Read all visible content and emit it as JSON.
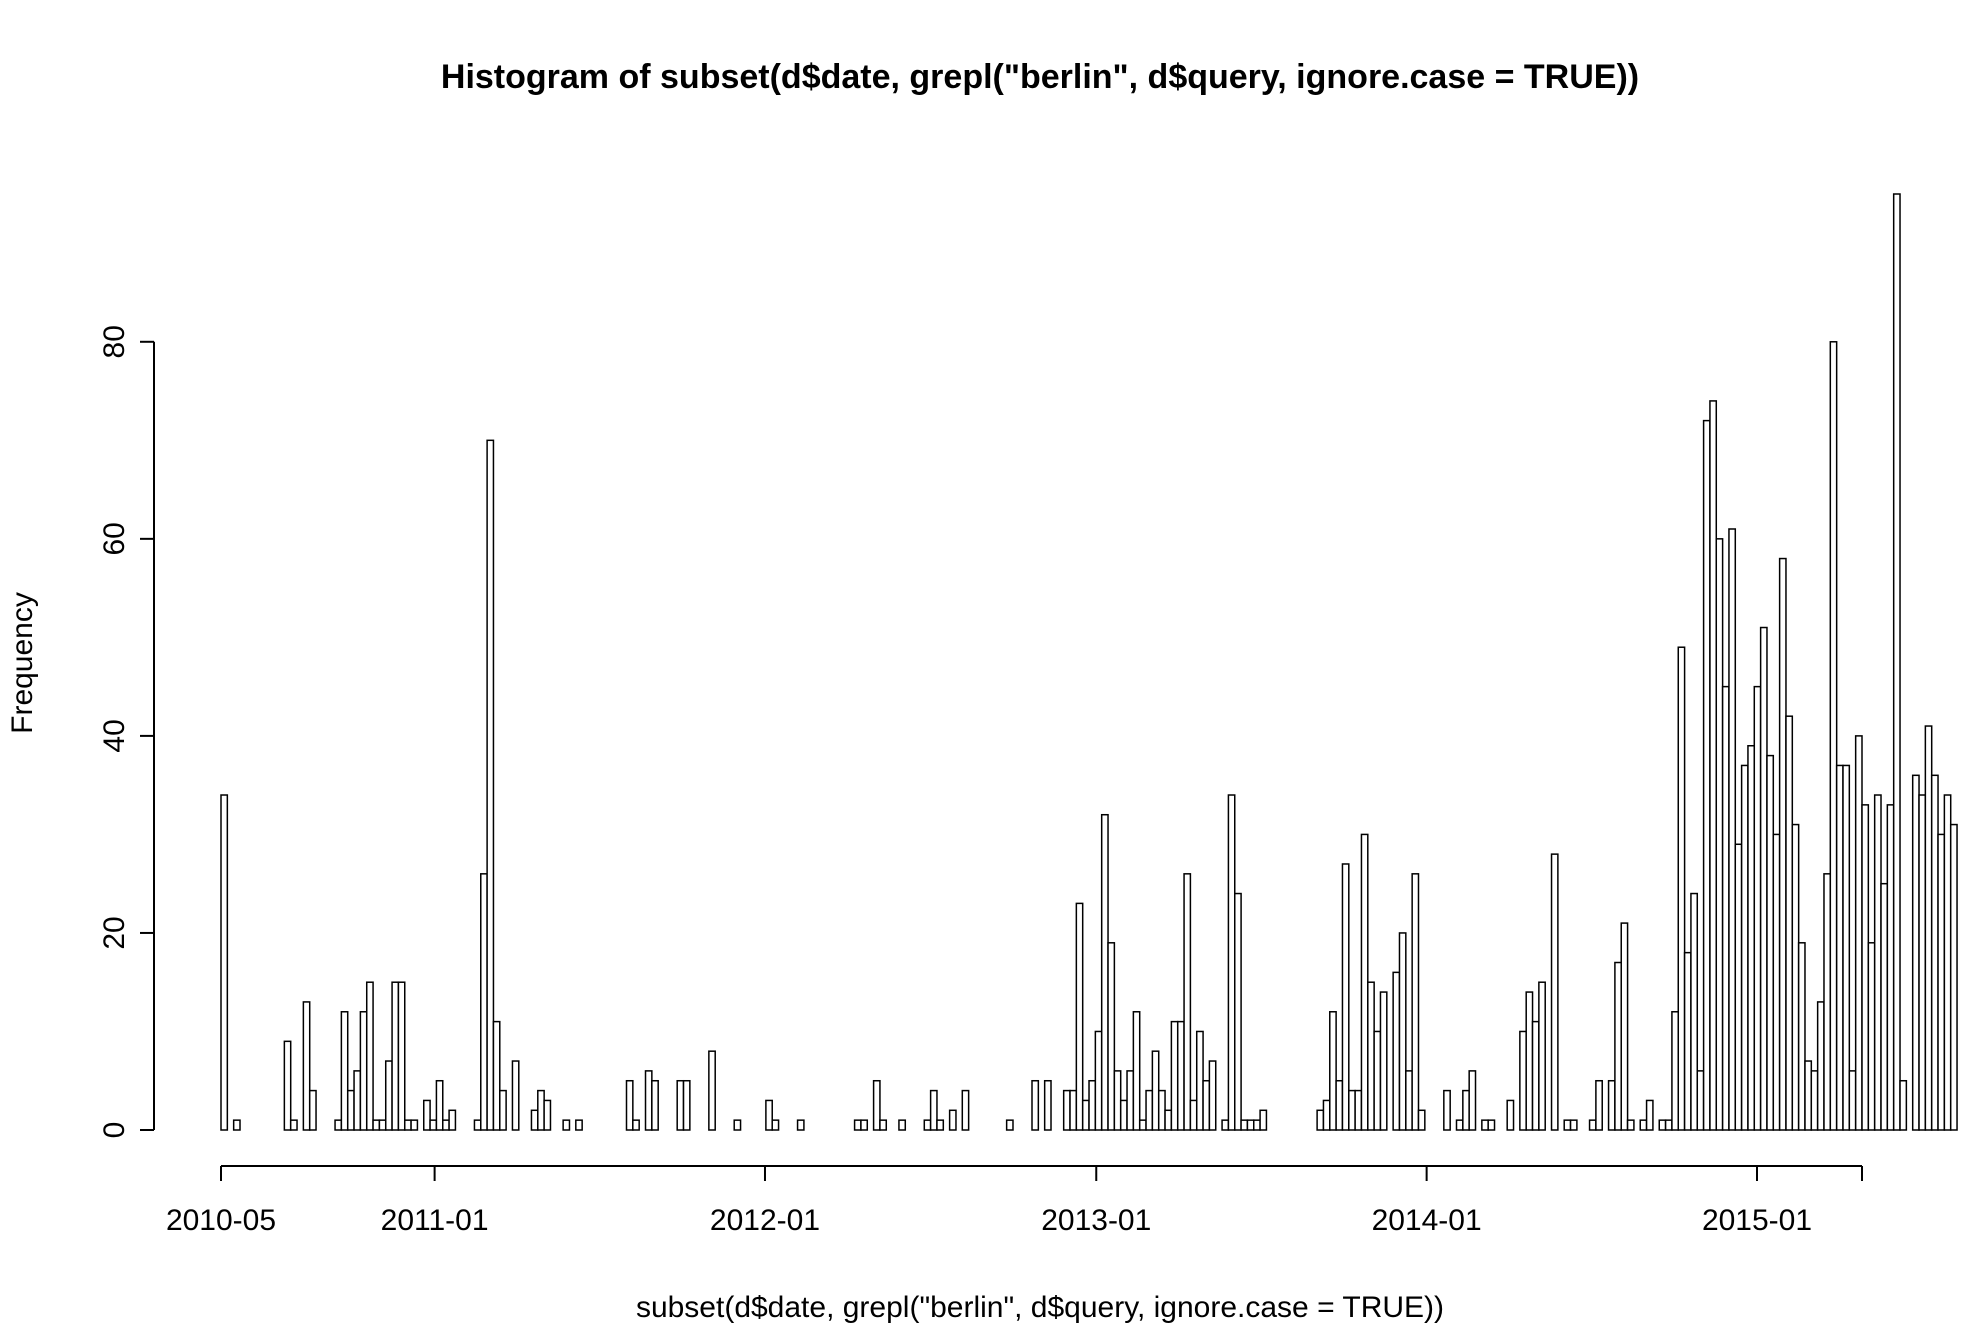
{
  "chart_data": {
    "type": "bar",
    "title": "Histogram of subset(d$date, grepl(\"berlin\", d$query, ignore.case = TRUE))",
    "xlabel": "subset(d$date, grepl(\"berlin\", d$query, ignore.case = TRUE))",
    "ylabel": "Frequency",
    "ylim": [
      0,
      95
    ],
    "y_ticks": [
      0,
      20,
      40,
      60,
      80
    ],
    "x_range": [
      "2010-05-10",
      "2015-04-27"
    ],
    "x_ticks": [
      {
        "date": "2010-05-10",
        "label": "2010-05"
      },
      {
        "date": "2011-01-01",
        "label": "2011-01"
      },
      {
        "date": "2012-01-01",
        "label": "2012-01"
      },
      {
        "date": "2013-01-01",
        "label": "2013-01"
      },
      {
        "date": "2014-01-01",
        "label": "2014-01"
      },
      {
        "date": "2015-01-01",
        "label": "2015-01"
      }
    ],
    "bin_width_days": 7,
    "grid": false,
    "values": [
      34,
      0,
      1,
      0,
      0,
      0,
      0,
      0,
      0,
      0,
      9,
      1,
      0,
      13,
      4,
      0,
      0,
      0,
      1,
      12,
      4,
      6,
      12,
      15,
      1,
      1,
      7,
      15,
      15,
      1,
      1,
      0,
      3,
      1,
      5,
      1,
      2,
      0,
      0,
      0,
      1,
      26,
      70,
      11,
      4,
      0,
      7,
      0,
      0,
      2,
      4,
      3,
      0,
      0,
      1,
      0,
      1,
      0,
      0,
      0,
      0,
      0,
      0,
      0,
      5,
      1,
      0,
      6,
      5,
      0,
      0,
      0,
      5,
      5,
      0,
      0,
      0,
      8,
      0,
      0,
      0,
      1,
      0,
      0,
      0,
      0,
      3,
      1,
      0,
      0,
      0,
      1,
      0,
      0,
      0,
      0,
      0,
      0,
      0,
      0,
      1,
      1,
      0,
      5,
      1,
      0,
      0,
      1,
      0,
      0,
      0,
      1,
      4,
      1,
      0,
      2,
      0,
      4,
      0,
      0,
      0,
      0,
      0,
      0,
      1,
      0,
      0,
      0,
      5,
      0,
      5,
      0,
      0,
      4,
      4,
      23,
      3,
      5,
      10,
      32,
      19,
      6,
      3,
      6,
      12,
      1,
      4,
      8,
      4,
      2,
      11,
      11,
      26,
      3,
      10,
      5,
      7,
      0,
      1,
      34,
      24,
      1,
      1,
      1,
      2,
      0,
      0,
      0,
      0,
      0,
      0,
      0,
      0,
      2,
      3,
      12,
      5,
      27,
      4,
      4,
      30,
      15,
      10,
      14,
      0,
      16,
      20,
      6,
      26,
      2,
      0,
      0,
      0,
      4,
      0,
      1,
      4,
      6,
      0,
      1,
      1,
      0,
      0,
      3,
      0,
      10,
      14,
      11,
      15,
      0,
      28,
      0,
      1,
      1,
      0,
      0,
      1,
      5,
      0,
      5,
      17,
      21,
      1,
      0,
      1,
      3,
      0,
      1,
      1,
      12,
      49,
      18,
      24,
      6,
      72,
      74,
      60,
      45,
      61,
      29,
      37,
      39,
      45,
      51,
      38,
      30,
      58,
      42,
      31,
      19,
      7,
      6,
      13,
      26,
      80,
      37,
      37,
      6,
      40,
      33,
      19,
      34,
      25,
      33,
      95,
      5,
      0,
      36,
      34,
      41,
      36,
      30,
      34,
      31
    ]
  }
}
